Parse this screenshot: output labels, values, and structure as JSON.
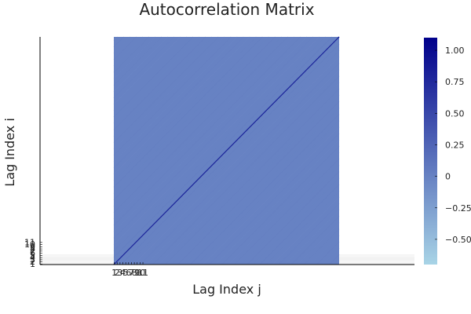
{
  "chart_data": {
    "type": "heatmap",
    "title": "Autocorrelation Matrix",
    "xlabel": "Lag Index j",
    "ylabel": "Lag Index i",
    "grid": true,
    "matrix_size": 250,
    "diagonal_value": 1.0,
    "offdiagonal_typical_value": -0.004,
    "x_tick_labels": [
      "1",
      "2",
      "3",
      "4",
      "5",
      "6",
      "7",
      "8",
      "9",
      "10",
      "11"
    ],
    "y_tick_labels": [
      "1",
      "2",
      "3",
      "4",
      "5",
      "6",
      "7",
      "8",
      "9",
      "10",
      "11"
    ],
    "colorbar": {
      "range": [
        -0.7,
        1.1
      ],
      "ticks": [
        -0.5,
        -0.25,
        0,
        0.25,
        0.5,
        0.75,
        1.0
      ],
      "tick_labels": [
        "−0.50",
        "−0.25",
        "0",
        "0.25",
        "0.50",
        "0.75",
        "1.00"
      ],
      "colors": [
        "#a8d4e6",
        "#00008b"
      ]
    }
  }
}
